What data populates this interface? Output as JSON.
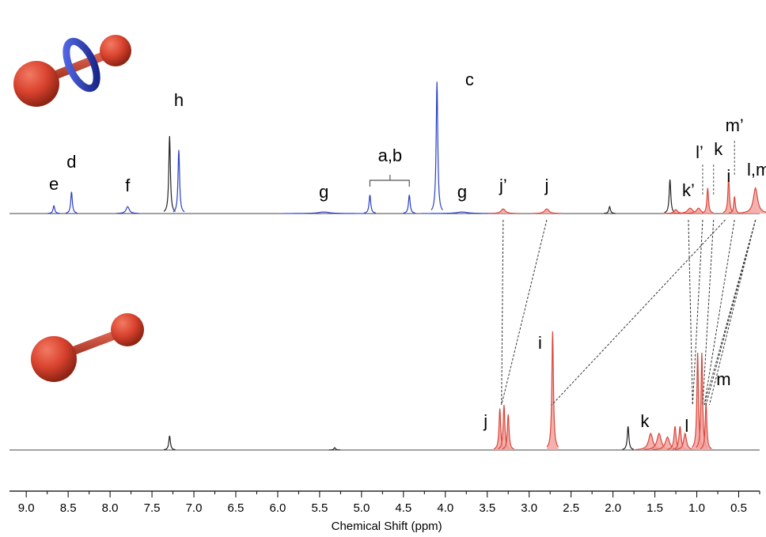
{
  "chart_data": {
    "type": "line",
    "xlabel": "Chemical Shift (ppm)",
    "xlim": [
      9.2,
      0.25
    ],
    "x_ticks": [
      "9.0",
      "8.5",
      "8.0",
      "7.5",
      "7.0",
      "6.5",
      "6.0",
      "5.5",
      "5.0",
      "4.5",
      "4.0",
      "3.5",
      "3.0",
      "2.5",
      "2.0",
      "1.5",
      "1.0",
      "0.5"
    ],
    "colors": {
      "host": "#2a40c4",
      "axle": "#d9463a",
      "solvent": "#222222",
      "fill": "#f2a3a0",
      "ring": "#1f2fb8",
      "ball": "#d9432f"
    },
    "series": [
      {
        "peaks": [
          {
            "ppm": 8.67,
            "height": 0.1,
            "width": 0.012,
            "color": "host"
          },
          {
            "ppm": 8.46,
            "height": 0.28,
            "width": 0.01,
            "color": "host"
          },
          {
            "ppm": 7.79,
            "height": 0.09,
            "width": 0.022,
            "color": "host"
          },
          {
            "ppm": 7.29,
            "height": 1.0,
            "width": 0.006,
            "color": "solvent"
          },
          {
            "ppm": 7.18,
            "height": 0.82,
            "width": 0.009,
            "color": "host"
          },
          {
            "ppm": 5.45,
            "height": 0.02,
            "width": 0.08,
            "color": "host"
          },
          {
            "ppm": 4.9,
            "height": 0.24,
            "width": 0.012,
            "color": "host"
          },
          {
            "ppm": 4.43,
            "height": 0.24,
            "width": 0.012,
            "color": "host"
          },
          {
            "ppm": 4.1,
            "height": 1.7,
            "width": 0.006,
            "color": "host"
          },
          {
            "ppm": 3.8,
            "height": 0.02,
            "width": 0.08,
            "color": "host"
          },
          {
            "ppm": 3.31,
            "height": 0.06,
            "width": 0.03,
            "color": "axle"
          },
          {
            "ppm": 2.79,
            "height": 0.06,
            "width": 0.03,
            "color": "axle"
          },
          {
            "ppm": 2.04,
            "height": 0.09,
            "width": 0.006,
            "color": "solvent"
          },
          {
            "ppm": 1.32,
            "height": 0.44,
            "width": 0.007,
            "color": "solvent"
          },
          {
            "ppm": 1.25,
            "height": 0.05,
            "width": 0.025,
            "color": "axle"
          },
          {
            "ppm": 1.08,
            "height": 0.07,
            "width": 0.035,
            "color": "axle"
          },
          {
            "ppm": 0.98,
            "height": 0.07,
            "width": 0.03,
            "color": "axle"
          },
          {
            "ppm": 0.87,
            "height": 0.33,
            "width": 0.008,
            "color": "axle"
          },
          {
            "ppm": 0.62,
            "height": 0.46,
            "width": 0.01,
            "color": "axle"
          },
          {
            "ppm": 0.55,
            "height": 0.22,
            "width": 0.009,
            "color": "axle"
          },
          {
            "ppm": 0.3,
            "height": 0.33,
            "width": 0.03,
            "color": "axle"
          }
        ]
      },
      {
        "peaks": [
          {
            "ppm": 7.29,
            "height": 0.12,
            "width": 0.006,
            "color": "solvent"
          },
          {
            "ppm": 5.32,
            "height": 0.02,
            "width": 0.006,
            "color": "solvent"
          },
          {
            "ppm": 3.35,
            "height": 0.35,
            "width": 0.012,
            "color": "axle"
          },
          {
            "ppm": 3.3,
            "height": 0.38,
            "width": 0.012,
            "color": "axle"
          },
          {
            "ppm": 3.25,
            "height": 0.3,
            "width": 0.012,
            "color": "axle"
          },
          {
            "ppm": 2.72,
            "height": 1.0,
            "width": 0.006,
            "color": "axle"
          },
          {
            "ppm": 1.82,
            "height": 0.2,
            "width": 0.006,
            "color": "solvent"
          },
          {
            "ppm": 1.55,
            "height": 0.14,
            "width": 0.03,
            "color": "axle"
          },
          {
            "ppm": 1.45,
            "height": 0.14,
            "width": 0.03,
            "color": "axle"
          },
          {
            "ppm": 1.35,
            "height": 0.11,
            "width": 0.03,
            "color": "axle"
          },
          {
            "ppm": 1.26,
            "height": 0.2,
            "width": 0.015,
            "color": "axle"
          },
          {
            "ppm": 1.2,
            "height": 0.2,
            "width": 0.015,
            "color": "axle"
          },
          {
            "ppm": 1.14,
            "height": 0.14,
            "width": 0.02,
            "color": "axle"
          },
          {
            "ppm": 0.99,
            "height": 0.82,
            "width": 0.007,
            "color": "axle"
          },
          {
            "ppm": 0.94,
            "height": 0.82,
            "width": 0.007,
            "color": "axle"
          },
          {
            "ppm": 0.89,
            "height": 0.4,
            "width": 0.007,
            "color": "axle"
          }
        ]
      }
    ],
    "annotations": {
      "top": [
        {
          "text": "e",
          "ppm": 8.67
        },
        {
          "text": "d",
          "ppm": 8.46
        },
        {
          "text": "f",
          "ppm": 7.79
        },
        {
          "text": "h",
          "ppm": 7.18
        },
        {
          "text": "g",
          "ppm": 5.45
        },
        {
          "text": "a,b",
          "ppm": 4.66
        },
        {
          "text": "c",
          "ppm": 3.9
        },
        {
          "text": "g",
          "ppm": 3.8
        },
        {
          "text": "j’",
          "ppm": 3.31
        },
        {
          "text": "j",
          "ppm": 2.79
        },
        {
          "text": "k’",
          "ppm": 1.1
        },
        {
          "text": "l’",
          "ppm": 0.93
        },
        {
          "text": "k",
          "ppm": 0.8
        },
        {
          "text": "i",
          "ppm": 0.62
        },
        {
          "text": "m’",
          "ppm": 0.55
        },
        {
          "text": "l,m",
          "ppm": 0.3
        }
      ],
      "bottom": [
        {
          "text": "j",
          "ppm": 3.52
        },
        {
          "text": "i",
          "ppm": 2.87
        },
        {
          "text": "k",
          "ppm": 1.62
        },
        {
          "text": "l",
          "ppm": 1.12
        },
        {
          "text": "m",
          "ppm": 0.68
        }
      ]
    }
  }
}
